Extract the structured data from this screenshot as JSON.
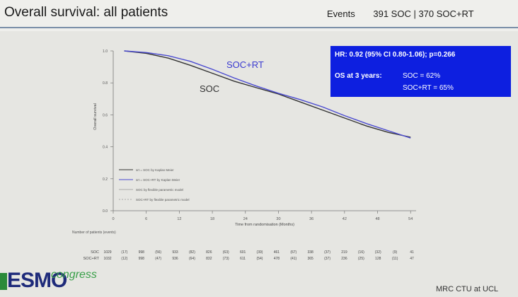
{
  "slide": {
    "title": "Overall survival: all patients",
    "events_label": "Events",
    "events_value": "391 SOC | 370 SOC+RT"
  },
  "stats_box": {
    "hr_text": "HR: 0.92 (95% CI 0.80-1.06); p=0.266",
    "os_label": "OS at 3 years:",
    "os_soc": "SOC = 62%",
    "os_socrt": "SOC+RT = 65%",
    "background": "#0d1fe0"
  },
  "footer": {
    "logo_main": "ESMO",
    "logo_sub": "congress",
    "credit": "MRC CTU at UCL"
  },
  "chart_data": {
    "type": "line",
    "xlabel": "Time from randomisation (Months)",
    "ylabel": "Overall survival",
    "xlim": [
      0,
      55
    ],
    "ylim": [
      0,
      1.0
    ],
    "x_ticks": [
      0,
      6,
      12,
      18,
      24,
      30,
      36,
      42,
      48,
      54
    ],
    "y_ticks": [
      0.0,
      0.2,
      0.4,
      0.6,
      0.8,
      1.0
    ],
    "y_tick_labels": [
      "0.0",
      "0.2",
      "0.4",
      "0.6",
      "0.8",
      "1.0"
    ],
    "grid": false,
    "series": [
      {
        "name": "SOC",
        "color": "#333333",
        "x": [
          2,
          6,
          10,
          14,
          18,
          22,
          26,
          30,
          34,
          38,
          42,
          46,
          50,
          54
        ],
        "y": [
          1.0,
          0.985,
          0.955,
          0.91,
          0.86,
          0.81,
          0.77,
          0.73,
          0.68,
          0.63,
          0.58,
          0.53,
          0.49,
          0.46
        ]
      },
      {
        "name": "SOC+RT",
        "color": "#4a4ad0",
        "x": [
          2,
          6,
          10,
          14,
          18,
          22,
          26,
          30,
          34,
          38,
          42,
          46,
          50,
          54
        ],
        "y": [
          1.0,
          0.99,
          0.97,
          0.935,
          0.885,
          0.83,
          0.78,
          0.735,
          0.695,
          0.65,
          0.595,
          0.545,
          0.5,
          0.455
        ]
      }
    ],
    "curve_labels": [
      {
        "text": "SOC+RT",
        "series": "SOC+RT"
      },
      {
        "text": "SOC",
        "series": "SOC"
      }
    ],
    "legend": {
      "placement": "bottom-left",
      "entries": [
        "srt = SOC by Kaplan Meier",
        "srt = SOC+RT by Kaplan Meier",
        "SOC by flexible parametric model",
        "SOC+RT by flexible parametric model"
      ]
    },
    "risk_table": {
      "header": "Number of patients (events)",
      "rows": [
        {
          "label": "SOC",
          "values": [
            "1029",
            "(17)",
            "998",
            "(56)",
            "933",
            "(82)",
            "826",
            "(63)",
            "601",
            "(39)",
            "461",
            "(67)",
            "338",
            "(37)",
            "219",
            "(16)",
            "(32)",
            "(9)",
            "41"
          ]
        },
        {
          "label": "SOC+RT",
          "values": [
            "1032",
            "(12)",
            "998",
            "(47)",
            "936",
            "(64)",
            "832",
            "(73)",
            "611",
            "(54)",
            "478",
            "(41)",
            "365",
            "(37)",
            "236",
            "(25)",
            "128",
            "(11)",
            "47"
          ]
        }
      ]
    }
  }
}
